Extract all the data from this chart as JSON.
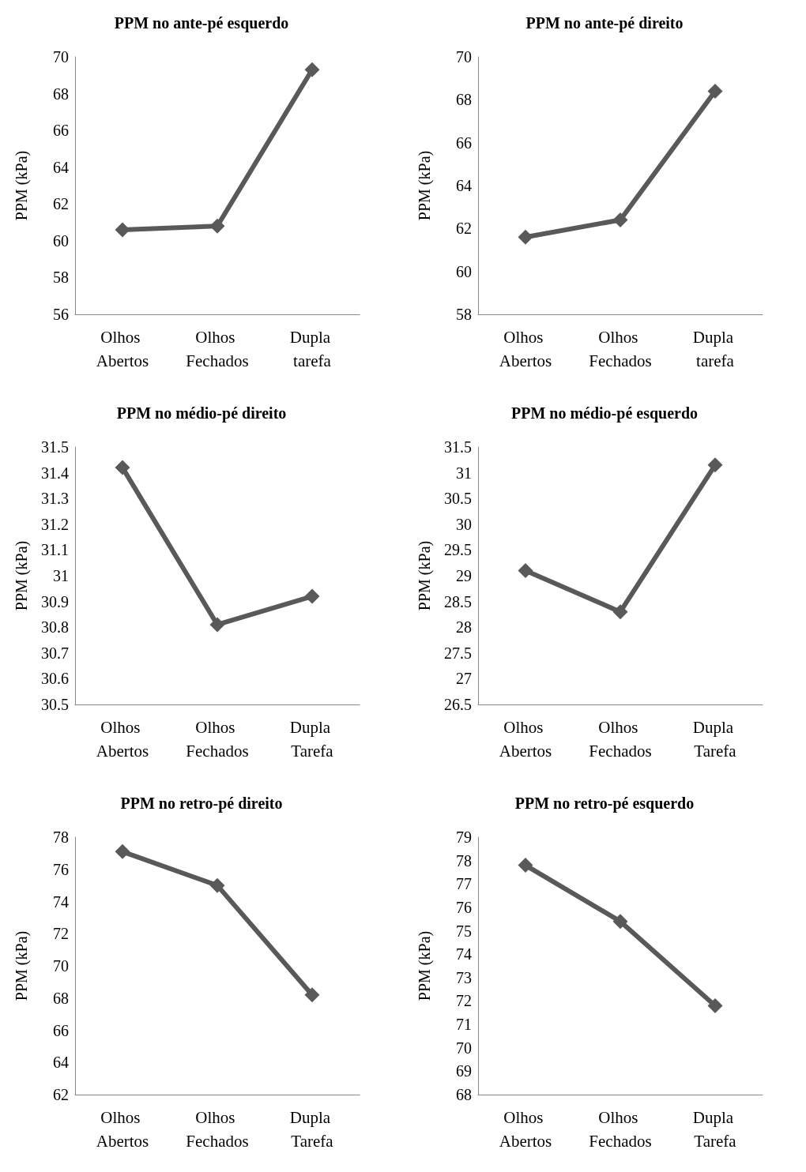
{
  "chart_data": [
    {
      "type": "line",
      "title": "PPM no ante-pé esquerdo",
      "ylabel": "PPM (kPa)",
      "categories": [
        "Olhos Abertos",
        "Olhos Fechados",
        "Dupla tarefa"
      ],
      "series": [
        {
          "color": "#595959",
          "values": [
            60.6,
            60.8,
            69.3
          ]
        }
      ],
      "ylim": [
        56,
        70
      ],
      "yticks": [
        56,
        58,
        60,
        62,
        64,
        66,
        68,
        70
      ],
      "marker": "diamond",
      "line_style": "solid",
      "grid": false
    },
    {
      "type": "line",
      "title": "PPM no ante-pé direito",
      "ylabel": "PPM (kPa)",
      "categories": [
        "Olhos Abertos",
        "Olhos Fechados",
        "Dupla tarefa"
      ],
      "series": [
        {
          "color": "#595959",
          "values": [
            61.6,
            62.4,
            68.4
          ]
        }
      ],
      "ylim": [
        58,
        70
      ],
      "yticks": [
        58,
        60,
        62,
        64,
        66,
        68,
        70
      ],
      "marker": "diamond",
      "line_style": "solid",
      "grid": false
    },
    {
      "type": "line",
      "title": "PPM no médio-pé direito",
      "ylabel": "PPM (kPa)",
      "categories": [
        "Olhos Abertos",
        "Olhos Fechados",
        "Dupla Tarefa"
      ],
      "series": [
        {
          "color": "#595959",
          "values": [
            31.42,
            30.81,
            30.92
          ]
        }
      ],
      "ylim": [
        30.5,
        31.5
      ],
      "yticks": [
        30.5,
        30.6,
        30.7,
        30.8,
        30.9,
        31,
        31.1,
        31.2,
        31.3,
        31.4,
        31.5
      ],
      "marker": "diamond",
      "line_style": "solid",
      "grid": false
    },
    {
      "type": "line",
      "title": "PPM no médio-pé esquerdo",
      "ylabel": "PPM (kPa)",
      "categories": [
        "Olhos Abertos",
        "Olhos Fechados",
        "Dupla Tarefa"
      ],
      "series": [
        {
          "color": "#595959",
          "values": [
            29.1,
            28.3,
            31.15
          ]
        }
      ],
      "ylim": [
        26.5,
        31.5
      ],
      "yticks": [
        26.5,
        27,
        27.5,
        28,
        28.5,
        29,
        29.5,
        30,
        30.5,
        31,
        31.5
      ],
      "marker": "diamond",
      "line_style": "solid",
      "grid": false
    },
    {
      "type": "line",
      "title": "PPM no retro-pé direito",
      "ylabel": "PPM (kPa)",
      "categories": [
        "Olhos Abertos",
        "Olhos Fechados",
        "Dupla Tarefa"
      ],
      "series": [
        {
          "color": "#595959",
          "values": [
            77.1,
            75.0,
            68.2
          ]
        }
      ],
      "ylim": [
        62,
        78
      ],
      "yticks": [
        62,
        64,
        66,
        68,
        70,
        72,
        74,
        76,
        78
      ],
      "marker": "diamond",
      "line_style": "solid",
      "grid": false
    },
    {
      "type": "line",
      "title": "PPM no retro-pé esquerdo",
      "ylabel": "PPM (kPa)",
      "categories": [
        "Olhos Abertos",
        "Olhos Fechados",
        "Dupla Tarefa"
      ],
      "series": [
        {
          "color": "#595959",
          "values": [
            77.8,
            75.4,
            71.8
          ]
        }
      ],
      "ylim": [
        68,
        79
      ],
      "yticks": [
        68,
        69,
        70,
        71,
        72,
        73,
        74,
        75,
        76,
        77,
        78,
        79
      ],
      "marker": "diamond",
      "line_style": "solid",
      "grid": false
    }
  ]
}
